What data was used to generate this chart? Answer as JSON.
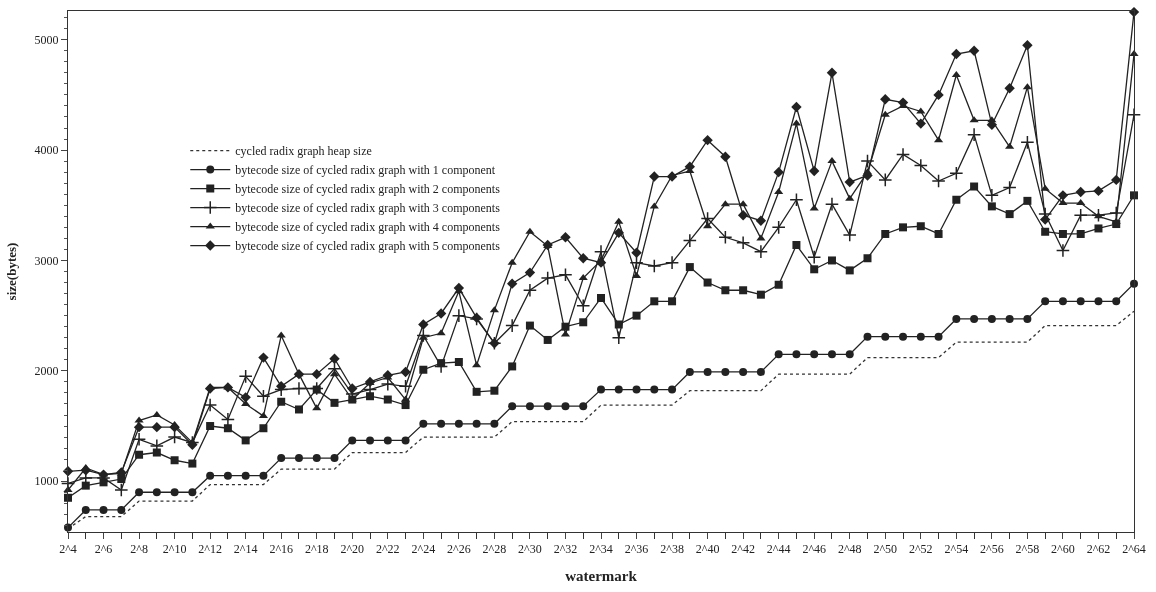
{
  "chart_data": {
    "type": "line",
    "xlabel": "watermark",
    "ylabel": "size(bytes)",
    "categories": [
      "2^4",
      null,
      "2^6",
      null,
      "2^8",
      null,
      "2^10",
      null,
      "2^12",
      null,
      "2^14",
      null,
      "2^16",
      null,
      "2^18",
      null,
      "2^20",
      null,
      "2^22",
      null,
      "2^24",
      null,
      "2^26",
      null,
      "2^28",
      null,
      "2^30",
      null,
      "2^32",
      null,
      "2^34",
      null,
      "2^36",
      null,
      "2^38",
      null,
      "2^40",
      null,
      "2^42",
      null,
      "2^44",
      null,
      "2^46",
      null,
      "2^48",
      null,
      "2^50",
      null,
      "2^52",
      null,
      "2^54",
      null,
      "2^56",
      null,
      "2^58",
      null,
      "2^60",
      null,
      "2^62",
      null,
      "2^64"
    ],
    "ylim": [
      540,
      5260
    ],
    "yticks": [
      1000,
      2000,
      3000,
      4000,
      5000
    ],
    "legend": "top left",
    "series": [
      {
        "name": "cycled radix graph heap size",
        "color": "#333333",
        "marker": "none",
        "line_style": "dotted",
        "values": [
          570,
          680,
          680,
          680,
          820,
          820,
          820,
          820,
          970,
          970,
          970,
          970,
          1110,
          1110,
          1110,
          1110,
          1260,
          1260,
          1260,
          1260,
          1400,
          1400,
          1400,
          1400,
          1400,
          1540,
          1540,
          1540,
          1540,
          1540,
          1690,
          1690,
          1690,
          1690,
          1690,
          1820,
          1820,
          1820,
          1820,
          1820,
          1970,
          1970,
          1970,
          1970,
          1970,
          2120,
          2120,
          2120,
          2120,
          2120,
          2260,
          2260,
          2260,
          2260,
          2260,
          2410,
          2410,
          2410,
          2410,
          2410,
          2540
        ]
      },
      {
        "name": "bytecode size of cycled radix graph with 1 component",
        "color": "#222222",
        "marker": "circle",
        "line_style": "solid",
        "values": [
          580,
          740,
          740,
          740,
          900,
          900,
          900,
          900,
          1050,
          1050,
          1050,
          1050,
          1210,
          1210,
          1210,
          1210,
          1370,
          1370,
          1370,
          1370,
          1520,
          1520,
          1520,
          1520,
          1520,
          1680,
          1680,
          1680,
          1680,
          1680,
          1830,
          1830,
          1830,
          1830,
          1830,
          1990,
          1990,
          1990,
          1990,
          1990,
          2150,
          2150,
          2150,
          2150,
          2150,
          2310,
          2310,
          2310,
          2310,
          2310,
          2470,
          2470,
          2470,
          2470,
          2470,
          2630,
          2630,
          2630,
          2630,
          2630,
          2790
        ]
      },
      {
        "name": "bytecode size of cycled radix graph with 2 components",
        "color": "#222222",
        "marker": "square",
        "line_style": "solid",
        "values": [
          850,
          960,
          990,
          1020,
          1240,
          1260,
          1190,
          1160,
          1500,
          1480,
          1370,
          1480,
          1720,
          1650,
          1830,
          1710,
          1740,
          1770,
          1740,
          1690,
          2010,
          2070,
          2080,
          1810,
          1820,
          2040,
          2410,
          2280,
          2400,
          2440,
          2660,
          2420,
          2500,
          2630,
          2630,
          2940,
          2800,
          2730,
          2730,
          2690,
          2780,
          3140,
          2920,
          3000,
          2910,
          3020,
          3240,
          3300,
          3310,
          3240,
          3550,
          3670,
          3490,
          3420,
          3540,
          3260,
          3240,
          3240,
          3290,
          3330,
          3590
        ]
      },
      {
        "name": "bytecode size of cycled radix graph with 3 components",
        "color": "#222222",
        "marker": "cross",
        "line_style": "solid",
        "values": [
          980,
          1030,
          1030,
          920,
          1380,
          1320,
          1400,
          1350,
          1690,
          1560,
          1950,
          1770,
          1830,
          1840,
          1840,
          2020,
          1790,
          1830,
          1880,
          1860,
          2320,
          2040,
          2500,
          2470,
          2250,
          2410,
          2730,
          2840,
          2870,
          2590,
          3080,
          2300,
          2980,
          2950,
          2980,
          3180,
          3380,
          3210,
          3160,
          3080,
          3300,
          3550,
          3030,
          3510,
          3230,
          3900,
          3730,
          3960,
          3860,
          3720,
          3790,
          4140,
          3590,
          3660,
          4070,
          3420,
          3090,
          3410,
          3410,
          3430,
          4320
        ]
      },
      {
        "name": "bytecode size of cycled radix graph with 4 components",
        "color": "#222222",
        "marker": "triangle",
        "line_style": "solid",
        "values": [
          920,
          1120,
          1060,
          1070,
          1550,
          1600,
          1510,
          1350,
          1850,
          1850,
          1700,
          1590,
          2320,
          1970,
          1660,
          1970,
          1740,
          1890,
          1940,
          1740,
          2300,
          2340,
          2720,
          2050,
          2550,
          2980,
          3260,
          3130,
          2330,
          2840,
          3000,
          3350,
          2860,
          3490,
          3770,
          3810,
          3310,
          3510,
          3510,
          3200,
          3620,
          4240,
          3470,
          3900,
          3560,
          3800,
          4320,
          4400,
          4350,
          4090,
          4680,
          4270,
          4270,
          4030,
          4570,
          3650,
          3520,
          3520,
          3400,
          3350,
          4870
        ]
      },
      {
        "name": "bytecode size of cycled radix graph with 5 components",
        "color": "#222222",
        "marker": "diamond",
        "line_style": "solid",
        "values": [
          1090,
          1100,
          1060,
          1080,
          1490,
          1490,
          1490,
          1330,
          1840,
          1850,
          1760,
          2120,
          1860,
          1970,
          1970,
          2110,
          1840,
          1900,
          1960,
          1990,
          2420,
          2520,
          2750,
          2480,
          2250,
          2790,
          2890,
          3140,
          3210,
          3020,
          2980,
          3250,
          3070,
          3760,
          3760,
          3850,
          4090,
          3940,
          3410,
          3360,
          3800,
          4390,
          3810,
          4700,
          3710,
          3770,
          4460,
          4430,
          4240,
          4500,
          4870,
          4900,
          4230,
          4560,
          4950,
          3370,
          3590,
          3620,
          3630,
          3730,
          5250
        ]
      }
    ]
  }
}
